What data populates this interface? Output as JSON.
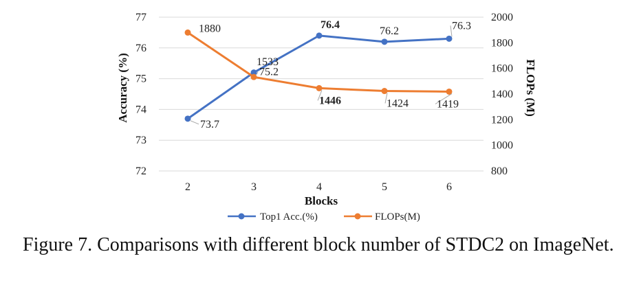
{
  "chart_data": {
    "type": "line",
    "categories": [
      "2",
      "3",
      "4",
      "5",
      "6"
    ],
    "xlabel": "Blocks",
    "y_left": {
      "label": "Accuracy (%)",
      "range": [
        72,
        77
      ],
      "ticks": [
        "72",
        "73",
        "74",
        "75",
        "76",
        "77"
      ]
    },
    "y_right": {
      "label": "FLOPs (M)",
      "range": [
        800,
        2000
      ],
      "ticks": [
        "800",
        "1000",
        "1200",
        "1400",
        "1600",
        "1800",
        "2000"
      ]
    },
    "series": [
      {
        "name": "Top1 Acc.(%)",
        "axis": "left",
        "color": "#4472C4",
        "values": [
          73.7,
          75.2,
          76.4,
          76.2,
          76.3
        ],
        "labels": [
          "73.7",
          "75.2",
          "76.4",
          "76.2",
          "76.3"
        ],
        "bold": [
          false,
          false,
          true,
          false,
          false
        ]
      },
      {
        "name": "FLOPs(M)",
        "axis": "right",
        "color": "#ED7D31",
        "values": [
          1880,
          1533,
          1446,
          1424,
          1419
        ],
        "labels": [
          "1880",
          "1533",
          "1446",
          "1424",
          "1419"
        ],
        "bold": [
          false,
          false,
          true,
          false,
          false
        ]
      }
    ],
    "grid": "horizontal",
    "legend": "bottom"
  },
  "caption": "Figure 7. Comparisons with different block number of STDC2 on ImageNet."
}
